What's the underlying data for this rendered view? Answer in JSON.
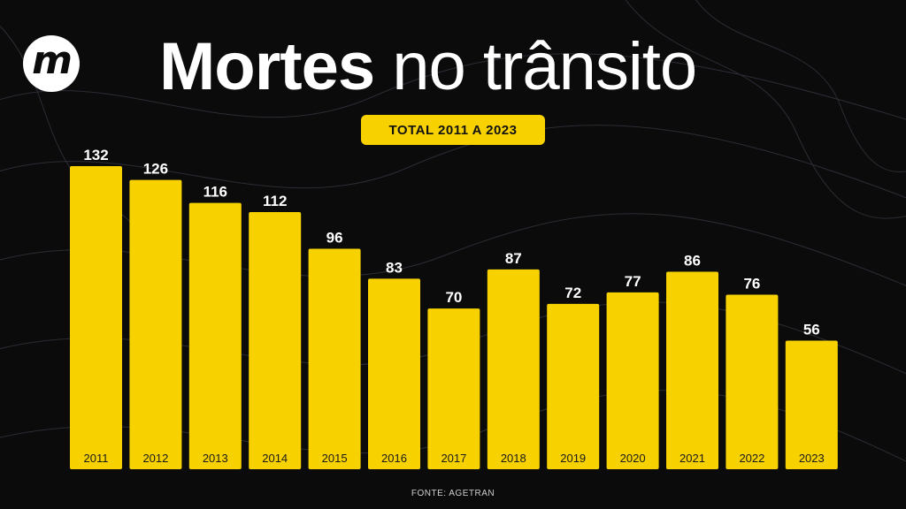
{
  "logo": {
    "text": "m",
    "icon": "m-logo-icon"
  },
  "header": {
    "title_bold": "Mortes",
    "title_light": "no trânsito",
    "subtitle": "TOTAL 2011 A 2023"
  },
  "source": "FONTE: AGETRAN",
  "colors": {
    "background": "#0b0b0c",
    "bar": "#f7d200",
    "text": "#ffffff",
    "bar_label": "#1a1a1a"
  },
  "chart_data": {
    "type": "bar",
    "title": "Mortes no trânsito",
    "subtitle": "TOTAL 2011 A 2023",
    "categories": [
      "2011",
      "2012",
      "2013",
      "2014",
      "2015",
      "2016",
      "2017",
      "2018",
      "2019",
      "2020",
      "2021",
      "2022",
      "2023"
    ],
    "values": [
      132,
      126,
      116,
      112,
      96,
      83,
      70,
      87,
      72,
      77,
      86,
      76,
      56
    ],
    "xlabel": "",
    "ylabel": "",
    "ylim": [
      0,
      132
    ],
    "grid": false,
    "legend": "none"
  }
}
